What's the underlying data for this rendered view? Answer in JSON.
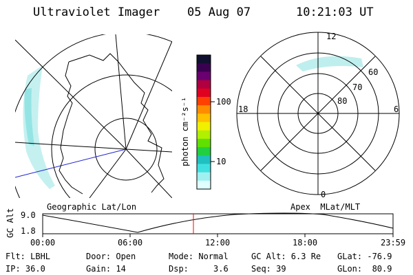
{
  "header": {
    "title": "Ultraviolet Imager",
    "date": "05 Aug 07",
    "time": "10:21:03 UT"
  },
  "colorbar": {
    "unit_label": "photon cm⁻²s⁻¹",
    "ticks": [
      "100",
      "10"
    ],
    "colors": [
      "#101030",
      "#3a0050",
      "#6a0070",
      "#b00040",
      "#e00020",
      "#ff4000",
      "#ff8c00",
      "#ffc000",
      "#f0f000",
      "#b0f000",
      "#60e000",
      "#20d040",
      "#20c0c0",
      "#40e0e0",
      "#a0f0f0",
      "#e0ffff"
    ]
  },
  "right_map": {
    "mlt_labels": {
      "top": "12",
      "left": "18",
      "right": "6",
      "bottom": "0"
    },
    "lat_labels": [
      "60",
      "70",
      "80"
    ]
  },
  "panel_labels": {
    "left": "Geographic Lat/Lon",
    "right": "Apex  MLat/MLT"
  },
  "altitude_plot": {
    "ylabel": "GC Alt",
    "yticks": [
      "9.0",
      "1.8"
    ],
    "xticks": [
      "00:00",
      "06:00",
      "12:00",
      "18:00",
      "23:59"
    ],
    "marker_color": "#ff0000"
  },
  "info": {
    "flt": "Flt: LBHL",
    "ip": "IP: 36.0",
    "door": "Door: Open",
    "gain": "Gain: 14",
    "mode": "Mode: Normal",
    "dsp": "Dsp:     3.6",
    "gcalt": "GC Alt: 6.3 Re",
    "seq": "Seq: 39",
    "glat": "GLat: -76.9",
    "glon": "GLon:  80.9"
  }
}
